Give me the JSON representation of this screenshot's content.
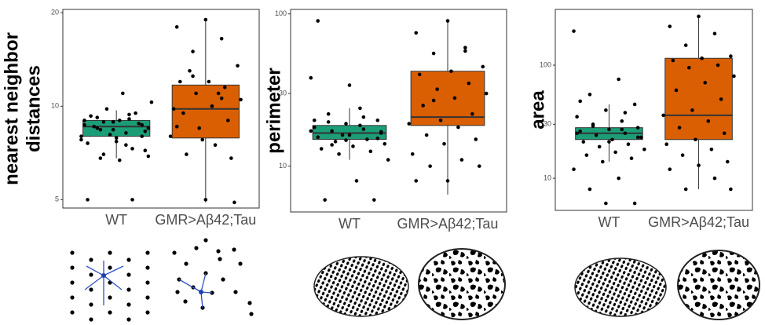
{
  "chart_data": [
    {
      "type": "box",
      "ylabel": [
        "nearest neighbor",
        "distances"
      ],
      "log": true,
      "categories": [
        "WT",
        "GMR>Aβ42;Tau"
      ],
      "ylim": [
        4.7,
        20.5
      ],
      "yticks": [
        5,
        10,
        20
      ],
      "boxes": [
        {
          "color": "#1b9e77",
          "whislo": 6.8,
          "q1": 8.0,
          "median": 8.6,
          "q3": 9.0,
          "whishi": 9.7,
          "points": [
            8.0,
            8.2,
            8.5,
            8.7,
            8.9,
            9.0,
            9.1,
            8.4,
            8.3,
            7.9,
            7.6,
            7.3,
            7.0,
            6.9,
            6.7,
            9.3,
            9.5,
            9.8,
            10.3,
            11.0,
            8.6,
            8.8,
            8.1,
            7.8,
            7.5,
            9.2,
            8.0,
            8.4,
            8.7,
            9.4,
            6.8,
            7.2,
            7.7,
            5.0,
            5.0,
            8.9,
            8.5,
            9.0
          ]
        },
        {
          "color": "#d95f02",
          "whislo": 4.9,
          "q1": 7.9,
          "median": 9.8,
          "q3": 11.7,
          "whishi": 19,
          "points": [
            19,
            18,
            16.5,
            15,
            13.5,
            12,
            12,
            11.5,
            11,
            10.5,
            10,
            9.5,
            9,
            8.5,
            8,
            7.5,
            7,
            6.8,
            7.8,
            9.8,
            11,
            13,
            4.9,
            5.0,
            8.6,
            10.6,
            12.5
          ]
        }
      ]
    },
    {
      "type": "box",
      "ylabel": [
        "perimeter"
      ],
      "log": true,
      "categories": [
        "WT",
        "GMR>Aβ42;Tau"
      ],
      "ylim": [
        5,
        107
      ],
      "yticks": [
        10,
        30,
        100
      ],
      "boxes": [
        {
          "color": "#1b9e77",
          "whislo": 11,
          "q1": 15,
          "median": 16.5,
          "q3": 18.5,
          "whishi": 24,
          "points": [
            38,
            24,
            22,
            20,
            19,
            18,
            17.5,
            17,
            16.5,
            16,
            15.5,
            15,
            14.5,
            14,
            13.5,
            13,
            12.5,
            12,
            11,
            8,
            6,
            6,
            16,
            17,
            18.5,
            19.5,
            15.2,
            14.8,
            20,
            21,
            13.8,
            16.8,
            34,
            90
          ]
        },
        {
          "color": "#d95f02",
          "whislo": 6.5,
          "q1": 18.5,
          "median": 21,
          "q3": 42,
          "whishi": 90,
          "points": [
            90,
            75,
            60,
            55,
            45,
            42,
            40,
            35,
            32,
            30,
            28,
            25,
            22,
            20,
            19,
            18,
            16,
            15,
            14,
            12,
            11,
            10,
            10,
            8,
            8,
            57,
            27
          ]
        }
      ]
    },
    {
      "type": "box",
      "ylabel": [
        "area"
      ],
      "log": true,
      "categories": [
        "WT",
        "GMR>Aβ42;Tau"
      ],
      "ylim": [
        5.2,
        311
      ],
      "yticks": [
        10,
        30,
        100
      ],
      "boxes": [
        {
          "color": "#1b9e77",
          "whislo": 14,
          "q1": 22,
          "median": 25,
          "q3": 28,
          "whishi": 45,
          "points": [
            200,
            75,
            55,
            45,
            40,
            35,
            32,
            30,
            28,
            27,
            26,
            25,
            24,
            23,
            22,
            21,
            20,
            19,
            18,
            17,
            16,
            15,
            14,
            12,
            10,
            8,
            6,
            6,
            25,
            27,
            29,
            23,
            21,
            48,
            38
          ]
        },
        {
          "color": "#d95f02",
          "whislo": 8,
          "q1": 22,
          "median": 36,
          "q3": 115,
          "whishi": 270,
          "points": [
            270,
            220,
            190,
            150,
            120,
            115,
            110,
            100,
            95,
            80,
            70,
            60,
            50,
            40,
            36,
            32,
            28,
            25,
            22,
            20,
            18,
            16,
            14,
            13,
            12,
            10,
            8,
            8,
            115
          ]
        }
      ]
    }
  ]
}
